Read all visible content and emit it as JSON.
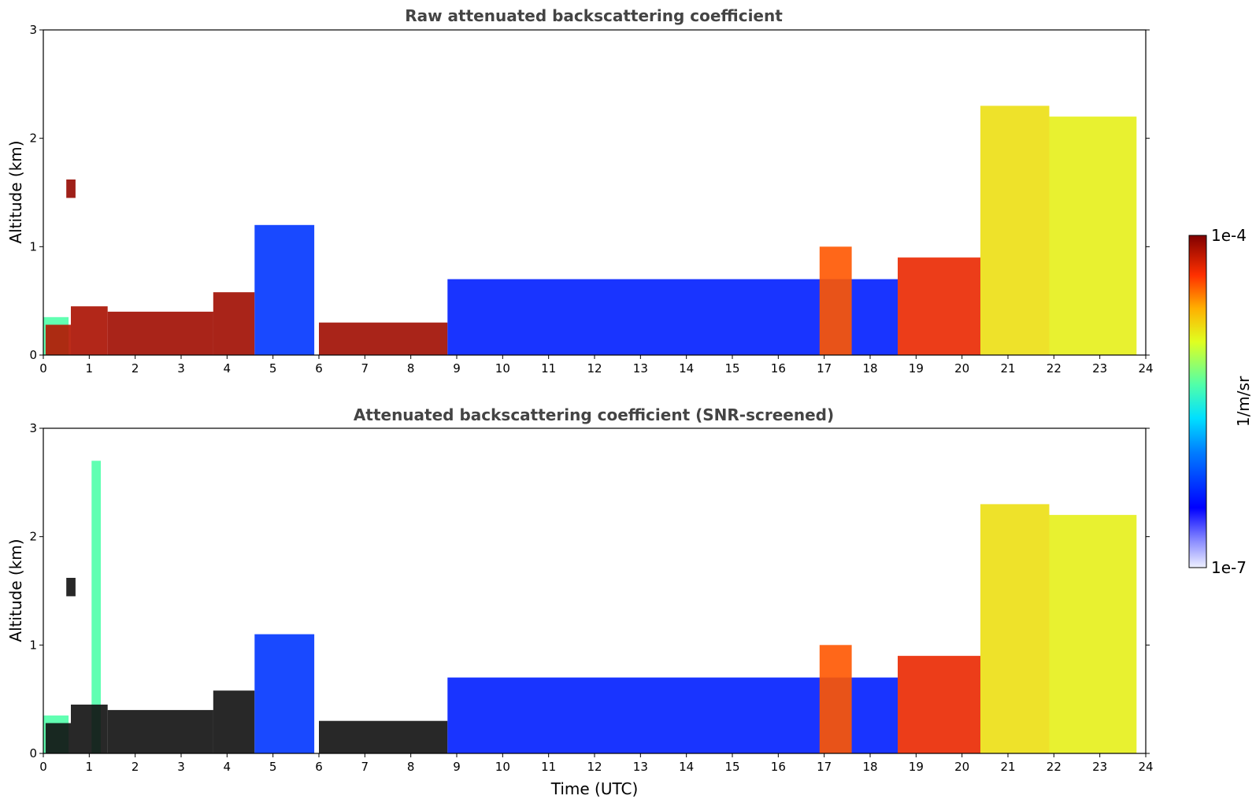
{
  "chart_data": [
    {
      "type": "heatmap",
      "title": "Raw attenuated backscattering coefficient",
      "xlabel": "",
      "ylabel": "Altitude (km)",
      "xlim": [
        0,
        24
      ],
      "ylim": [
        0,
        3
      ],
      "xticks": [
        "0",
        "1",
        "2",
        "3",
        "4",
        "5",
        "6",
        "7",
        "8",
        "9",
        "10",
        "11",
        "12",
        "13",
        "14",
        "15",
        "16",
        "17",
        "18",
        "19",
        "20",
        "21",
        "22",
        "23",
        "24"
      ],
      "yticks": [
        "0",
        "1",
        "2",
        "3"
      ],
      "features": [
        {
          "t0": 0.0,
          "t1": 0.55,
          "top": 0.35,
          "level": 0.55
        },
        {
          "t0": 0.05,
          "t1": 0.6,
          "top": 0.28,
          "level": 0.95
        },
        {
          "t0": 0.5,
          "t1": 0.7,
          "top": 1.62,
          "base": 1.45,
          "level": 0.98
        },
        {
          "t0": 0.6,
          "t1": 1.4,
          "top": 0.45,
          "level": 0.96
        },
        {
          "t0": 1.4,
          "t1": 3.7,
          "top": 0.4,
          "level": 0.97
        },
        {
          "t0": 3.7,
          "t1": 4.6,
          "top": 0.58,
          "level": 0.97
        },
        {
          "t0": 4.6,
          "t1": 5.9,
          "top": 1.2,
          "level": 0.25
        },
        {
          "t0": 6.0,
          "t1": 8.8,
          "top": 0.3,
          "level": 0.97
        },
        {
          "t0": 8.8,
          "t1": 18.6,
          "top": 0.7,
          "level": 0.22
        },
        {
          "t0": 16.9,
          "t1": 17.6,
          "top": 1.0,
          "level": 0.85
        },
        {
          "t0": 18.6,
          "t1": 20.4,
          "top": 0.9,
          "level": 0.9
        },
        {
          "t0": 20.4,
          "t1": 21.9,
          "top": 2.3,
          "level": 0.72
        },
        {
          "t0": 21.9,
          "t1": 23.8,
          "top": 2.2,
          "level": 0.7
        }
      ]
    },
    {
      "type": "heatmap",
      "title": "Attenuated backscattering coefficient (SNR-screened)",
      "xlabel": "Time (UTC)",
      "ylabel": "Altitude (km)",
      "xlim": [
        0,
        24
      ],
      "ylim": [
        0,
        3
      ],
      "xticks": [
        "0",
        "1",
        "2",
        "3",
        "4",
        "5",
        "6",
        "7",
        "8",
        "9",
        "10",
        "11",
        "12",
        "13",
        "14",
        "15",
        "16",
        "17",
        "18",
        "19",
        "20",
        "21",
        "22",
        "23",
        "24"
      ],
      "yticks": [
        "0",
        "1",
        "2",
        "3"
      ],
      "features": [
        {
          "t0": 0.0,
          "t1": 0.55,
          "top": 0.35,
          "level": 0.55
        },
        {
          "t0": 0.05,
          "t1": 0.6,
          "top": 0.28,
          "level": 1.0
        },
        {
          "t0": 0.5,
          "t1": 0.7,
          "top": 1.62,
          "base": 1.45,
          "level": 1.0
        },
        {
          "t0": 1.05,
          "t1": 1.25,
          "top": 2.7,
          "level": 0.55
        },
        {
          "t0": 0.6,
          "t1": 1.4,
          "top": 0.45,
          "level": 1.0
        },
        {
          "t0": 1.4,
          "t1": 3.7,
          "top": 0.4,
          "level": 1.0
        },
        {
          "t0": 3.7,
          "t1": 4.6,
          "top": 0.58,
          "level": 1.0
        },
        {
          "t0": 4.6,
          "t1": 5.9,
          "top": 1.1,
          "level": 0.25
        },
        {
          "t0": 6.0,
          "t1": 8.8,
          "top": 0.3,
          "level": 1.0
        },
        {
          "t0": 8.8,
          "t1": 18.6,
          "top": 0.7,
          "level": 0.22
        },
        {
          "t0": 16.9,
          "t1": 17.6,
          "top": 1.0,
          "level": 0.85
        },
        {
          "t0": 18.6,
          "t1": 20.4,
          "top": 0.9,
          "level": 0.9
        },
        {
          "t0": 20.4,
          "t1": 21.9,
          "top": 2.3,
          "level": 0.72
        },
        {
          "t0": 21.9,
          "t1": 23.8,
          "top": 2.2,
          "level": 0.7
        }
      ]
    }
  ],
  "colorbar": {
    "label": "1/m/sr",
    "max_label": "1e-4",
    "min_label": "1e-7",
    "colormap": "jet"
  }
}
